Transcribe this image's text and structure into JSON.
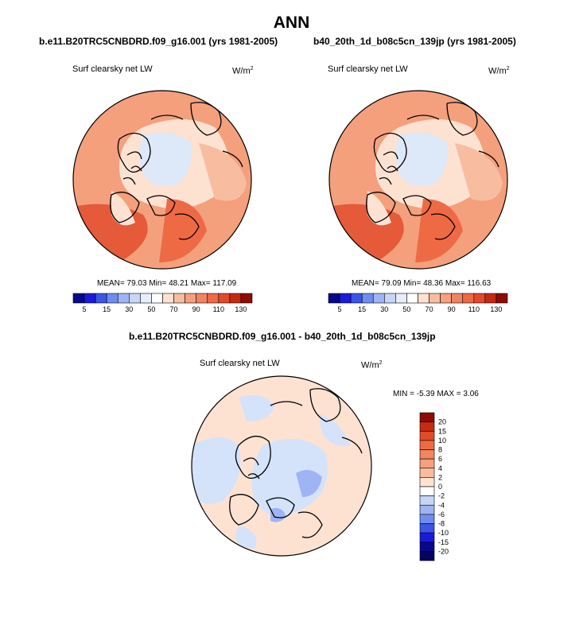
{
  "title": "ANN",
  "units_html": "W/m",
  "units_sup": "2",
  "panels": [
    {
      "case": "b.e11.B20TRC5CNBDRD.f09_g16.001 (yrs 1981-2005)",
      "variable": "Surf clearsky net LW",
      "mean_label": "MEAN=",
      "mean": "79.03",
      "min_label": "Min=",
      "min": "48.21",
      "max_label": "Max=",
      "max": "117.09"
    },
    {
      "case": "b40_20th_1d_b08c5cn_139jp (yrs 1981-2005)",
      "variable": "Surf clearsky net LW",
      "mean_label": "MEAN=",
      "mean": "79.09",
      "min_label": "Min=",
      "min": "48.36",
      "max_label": "Max=",
      "max": "116.63"
    }
  ],
  "horizontal_colorbar": {
    "labels": [
      "5",
      "15",
      "30",
      "50",
      "70",
      "90",
      "110",
      "130"
    ],
    "colors": [
      "#08088c",
      "#1a1adc",
      "#3a55e8",
      "#6f8cf0",
      "#9fb4f4",
      "#c7d6f7",
      "#e6eefb",
      "#ffffff",
      "#fde2d2",
      "#f8bda0",
      "#f5a07e",
      "#f2845f",
      "#ee6a45",
      "#e24a2a",
      "#c52a12",
      "#8e0a06"
    ]
  },
  "difference": {
    "title": "b.e11.B20TRC5CNBDRD.f09_g16.001 - b40_20th_1d_b08c5cn_139jp",
    "variable": "Surf clearsky net LW",
    "min_label": "MIN =",
    "min": "-5.39",
    "max_label": "MAX =",
    "max": "3.06"
  },
  "vertical_colorbar": {
    "labels": [
      "20",
      "15",
      "10",
      "8",
      "6",
      "4",
      "2",
      "0",
      "-2",
      "-4",
      "-6",
      "-8",
      "-10",
      "-15",
      "-20"
    ],
    "colors": [
      "#8e0a06",
      "#c52a12",
      "#e24a2a",
      "#ee6a45",
      "#f2845f",
      "#f5a07e",
      "#f8bda0",
      "#fde2d2",
      "#ffffff",
      "#c7d6f7",
      "#9fb4f4",
      "#6f8cf0",
      "#3a55e8",
      "#1a1adc",
      "#08088c",
      "#050560"
    ]
  }
}
